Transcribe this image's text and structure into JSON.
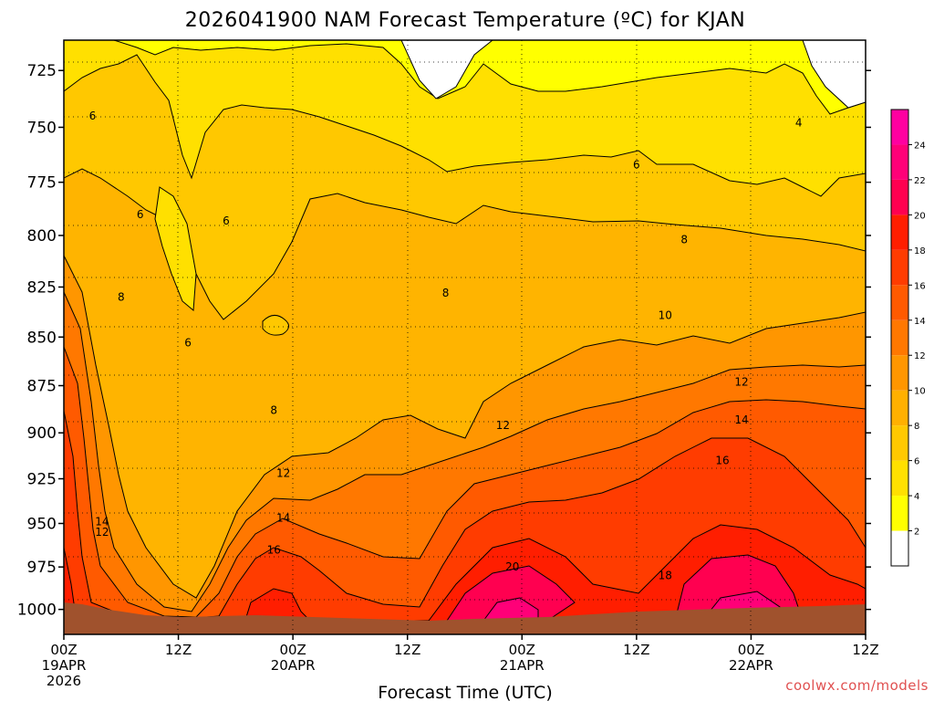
{
  "chart_data": {
    "type": "heatmap",
    "title": "2026041900 NAM Forecast Temperature (ºC) for KJAN",
    "xlabel": "Forecast Time (UTC)",
    "ylabel": "",
    "x_hours_range": [
      0,
      84
    ],
    "ylim": [
      712,
      1015
    ],
    "y_ticks": [
      725,
      750,
      775,
      800,
      825,
      850,
      875,
      900,
      925,
      950,
      975,
      1000
    ],
    "x_ticks": [
      {
        "hour": 0,
        "label": "00Z",
        "date": "19APR",
        "year": "2026"
      },
      {
        "hour": 12,
        "label": "12Z"
      },
      {
        "hour": 24,
        "label": "00Z",
        "date": "20APR"
      },
      {
        "hour": 36,
        "label": "12Z"
      },
      {
        "hour": 48,
        "label": "00Z",
        "date": "21APR"
      },
      {
        "hour": 60,
        "label": "12Z"
      },
      {
        "hour": 72,
        "label": "00Z",
        "date": "22APR"
      },
      {
        "hour": 84,
        "label": "12Z"
      }
    ],
    "grid": true,
    "contour_interval": 2,
    "colorbar": {
      "ticks": [
        2,
        4,
        6,
        8,
        10,
        12,
        14,
        16,
        18,
        20,
        22,
        24
      ],
      "colors": [
        "#ffffff",
        "#ffff00",
        "#ffe000",
        "#ffc800",
        "#ffb000",
        "#ff9600",
        "#ff7800",
        "#ff5a00",
        "#ff3c00",
        "#ff1e00",
        "#ff0050",
        "#ff0078",
        "#ff00a0"
      ]
    },
    "ground_color": "#a0522d",
    "isotherm_labels": [
      {
        "text": "6",
        "hour": 3,
        "p": 745
      },
      {
        "text": "6",
        "hour": 8,
        "p": 790
      },
      {
        "text": "6",
        "hour": 17,
        "p": 793
      },
      {
        "text": "6",
        "hour": 13,
        "p": 853
      },
      {
        "text": "6",
        "hour": 60,
        "p": 767
      },
      {
        "text": "4",
        "hour": 77,
        "p": 748
      },
      {
        "text": "8",
        "hour": 6,
        "p": 830
      },
      {
        "text": "8",
        "hour": 22,
        "p": 888
      },
      {
        "text": "8",
        "hour": 40,
        "p": 828
      },
      {
        "text": "8",
        "hour": 65,
        "p": 802
      },
      {
        "text": "10",
        "hour": 63,
        "p": 839
      },
      {
        "text": "12",
        "hour": 4,
        "p": 955
      },
      {
        "text": "12",
        "hour": 23,
        "p": 922
      },
      {
        "text": "12",
        "hour": 46,
        "p": 896
      },
      {
        "text": "12",
        "hour": 71,
        "p": 873
      },
      {
        "text": "14",
        "hour": 4,
        "p": 949
      },
      {
        "text": "14",
        "hour": 23,
        "p": 947
      },
      {
        "text": "14",
        "hour": 71,
        "p": 893
      },
      {
        "text": "16",
        "hour": 22,
        "p": 965
      },
      {
        "text": "16",
        "hour": 69,
        "p": 915
      },
      {
        "text": "18",
        "hour": 63,
        "p": 980
      },
      {
        "text": "20",
        "hour": 47,
        "p": 975
      }
    ]
  },
  "credit": "coolwx.com/models"
}
